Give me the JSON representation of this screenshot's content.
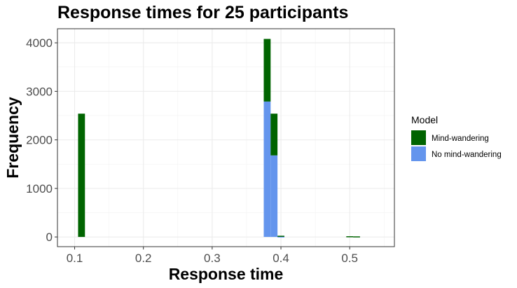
{
  "chart_data": {
    "type": "bar",
    "title": "Response times for 25 participants",
    "xlabel": "Response time",
    "ylabel": "Frequency",
    "xlim": [
      0.075,
      0.565
    ],
    "ylim": [
      -200,
      4290
    ],
    "x_ticks": [
      0.1,
      0.2,
      0.3,
      0.4,
      0.5
    ],
    "x_tick_labels": [
      "0.1",
      "0.2",
      "0.3",
      "0.4",
      "0.5"
    ],
    "y_ticks": [
      0,
      1000,
      2000,
      3000,
      4000
    ],
    "y_tick_labels": [
      "0",
      "1000",
      "2000",
      "3000",
      "4000"
    ],
    "stacked": true,
    "bin_width": 0.01,
    "bins": [
      {
        "x0": 0.105,
        "x1": 0.115,
        "Mind-wandering": 2540,
        "No mind-wandering": 0
      },
      {
        "x0": 0.375,
        "x1": 0.385,
        "Mind-wandering": 1290,
        "No mind-wandering": 2790
      },
      {
        "x0": 0.385,
        "x1": 0.395,
        "Mind-wandering": 860,
        "No mind-wandering": 1680
      },
      {
        "x0": 0.395,
        "x1": 0.405,
        "Mind-wandering": 15,
        "No mind-wandering": 10
      },
      {
        "x0": 0.495,
        "x1": 0.505,
        "Mind-wandering": 15,
        "No mind-wandering": 0
      },
      {
        "x0": 0.505,
        "x1": 0.515,
        "Mind-wandering": 12,
        "No mind-wandering": 0
      }
    ],
    "grid": true,
    "legend": {
      "title": "Model",
      "position": "right",
      "entries": [
        {
          "name": "Mind-wandering",
          "color": "#006400"
        },
        {
          "name": "No mind-wandering",
          "color": "#6495ED"
        }
      ]
    }
  }
}
